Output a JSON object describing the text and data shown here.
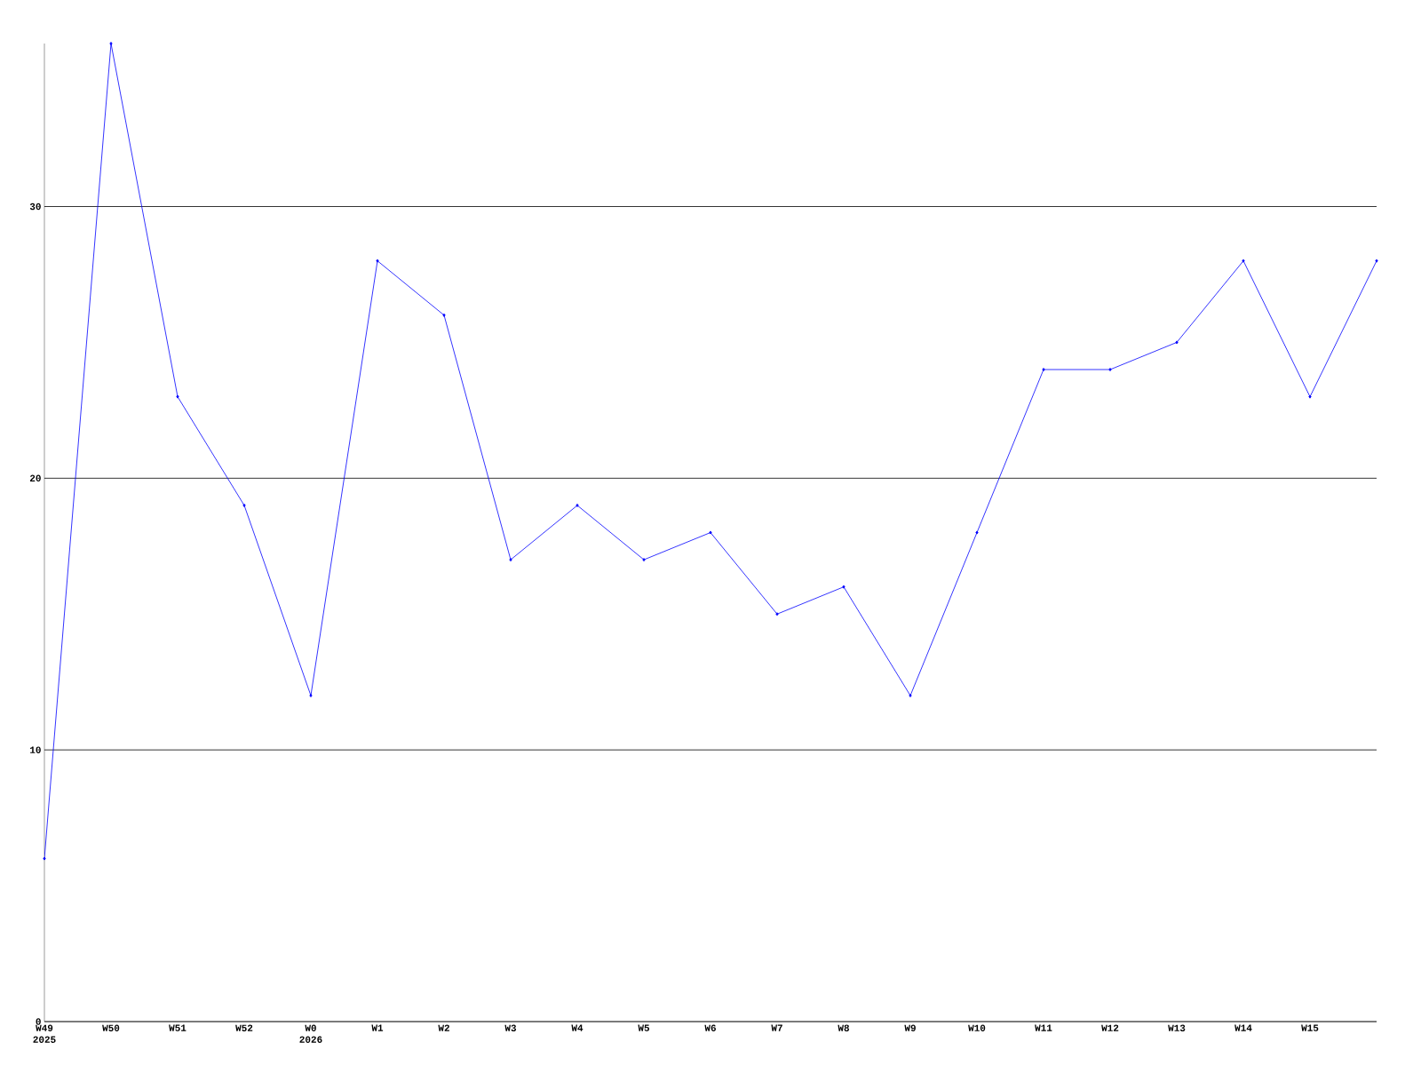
{
  "chart_data": {
    "type": "line",
    "categories": [
      "W49 2025",
      "W50",
      "W51",
      "W52",
      "W0 2026",
      "W1",
      "W2",
      "W3",
      "W4",
      "W5",
      "W6",
      "W7",
      "W8",
      "W9",
      "W10",
      "W11",
      "W12",
      "W13",
      "W14",
      "W15",
      null
    ],
    "values": [
      6,
      36,
      23,
      19,
      12,
      28,
      26,
      17,
      19,
      17,
      18,
      15,
      16,
      12,
      18,
      24,
      24,
      25,
      28,
      23,
      28
    ],
    "color": "#0000ff",
    "marker": "diamond",
    "line_style": "solid",
    "ylim": [
      0,
      36
    ],
    "yticks": [
      0,
      10,
      20,
      30
    ],
    "grid": "y"
  }
}
